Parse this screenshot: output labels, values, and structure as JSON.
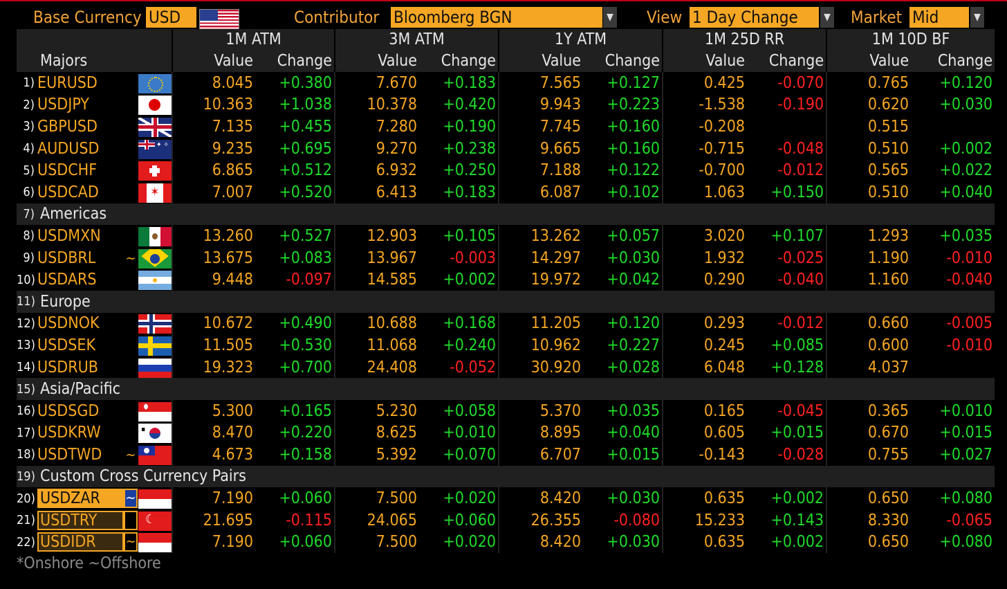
{
  "toolbar": {
    "base_currency_label": "Base Currency",
    "base_currency_value": "USD",
    "contributor_label": "Contributor",
    "contributor_value": "Bloomberg BGN",
    "view_label": "View",
    "view_value": "1 Day Change",
    "market_label": "Market",
    "market_value": "Mid"
  },
  "headers": {
    "majors": "Majors",
    "groups": [
      "1M ATM",
      "3M ATM",
      "1Y ATM",
      "1M 25D RR",
      "1M 10D BF"
    ],
    "value": "Value",
    "change": "Change"
  },
  "rows": [
    {
      "type": "pair",
      "num": "1)",
      "name": "EURUSD",
      "tilde": "",
      "flag": "eur",
      "cells": [
        "8.045",
        "+0.380",
        "7.670",
        "+0.183",
        "7.565",
        "+0.127",
        "0.425",
        "-0.070",
        "0.765",
        "+0.120"
      ]
    },
    {
      "type": "pair",
      "num": "2)",
      "name": "USDJPY",
      "tilde": "",
      "flag": "jpy",
      "cells": [
        "10.363",
        "+1.038",
        "10.378",
        "+0.420",
        "9.943",
        "+0.223",
        "-1.538",
        "-0.190",
        "0.620",
        "+0.030"
      ]
    },
    {
      "type": "pair",
      "num": "3)",
      "name": "GBPUSD",
      "tilde": "",
      "flag": "gbp",
      "cells": [
        "7.135",
        "+0.455",
        "7.280",
        "+0.190",
        "7.745",
        "+0.160",
        "-0.208",
        "",
        "0.515",
        ""
      ]
    },
    {
      "type": "pair",
      "num": "4)",
      "name": "AUDUSD",
      "tilde": "",
      "flag": "aud",
      "cells": [
        "9.235",
        "+0.695",
        "9.270",
        "+0.238",
        "9.665",
        "+0.160",
        "-0.715",
        "-0.048",
        "0.510",
        "+0.002"
      ]
    },
    {
      "type": "pair",
      "num": "5)",
      "name": "USDCHF",
      "tilde": "",
      "flag": "chf",
      "cells": [
        "6.865",
        "+0.512",
        "6.932",
        "+0.250",
        "7.188",
        "+0.122",
        "-0.700",
        "-0.012",
        "0.565",
        "+0.022"
      ]
    },
    {
      "type": "pair",
      "num": "6)",
      "name": "USDCAD",
      "tilde": "",
      "flag": "cad",
      "cells": [
        "7.007",
        "+0.520",
        "6.413",
        "+0.183",
        "6.087",
        "+0.102",
        "1.063",
        "+0.150",
        "0.510",
        "+0.040"
      ]
    },
    {
      "type": "section",
      "num": "7)",
      "name": "Americas"
    },
    {
      "type": "pair",
      "num": "8)",
      "name": "USDMXN",
      "tilde": "",
      "flag": "mxn",
      "cells": [
        "13.260",
        "+0.527",
        "12.903",
        "+0.105",
        "13.262",
        "+0.057",
        "3.020",
        "+0.107",
        "1.293",
        "+0.035"
      ]
    },
    {
      "type": "pair",
      "num": "9)",
      "name": "USDBRL",
      "tilde": "~",
      "flag": "brl",
      "cells": [
        "13.675",
        "+0.083",
        "13.967",
        "-0.003",
        "14.297",
        "+0.030",
        "1.932",
        "-0.025",
        "1.190",
        "-0.010"
      ]
    },
    {
      "type": "pair",
      "num": "10)",
      "name": "USDARS",
      "tilde": "",
      "flag": "ars",
      "cells": [
        "9.448",
        "-0.097",
        "14.585",
        "+0.002",
        "19.972",
        "+0.042",
        "0.290",
        "-0.040",
        "1.160",
        "-0.040"
      ]
    },
    {
      "type": "section",
      "num": "11)",
      "name": "Europe"
    },
    {
      "type": "pair",
      "num": "12)",
      "name": "USDNOK",
      "tilde": "",
      "flag": "nok",
      "cells": [
        "10.672",
        "+0.490",
        "10.688",
        "+0.168",
        "11.205",
        "+0.120",
        "0.293",
        "-0.012",
        "0.660",
        "-0.005"
      ]
    },
    {
      "type": "pair",
      "num": "13)",
      "name": "USDSEK",
      "tilde": "",
      "flag": "sek",
      "cells": [
        "11.505",
        "+0.530",
        "11.068",
        "+0.240",
        "10.962",
        "+0.227",
        "0.245",
        "+0.085",
        "0.600",
        "-0.010"
      ]
    },
    {
      "type": "pair",
      "num": "14)",
      "name": "USDRUB",
      "tilde": "",
      "flag": "rub",
      "cells": [
        "19.323",
        "+0.700",
        "24.408",
        "-0.052",
        "30.920",
        "+0.028",
        "6.048",
        "+0.128",
        "4.037",
        ""
      ]
    },
    {
      "type": "section",
      "num": "15)",
      "name": "Asia/Pacific"
    },
    {
      "type": "pair",
      "num": "16)",
      "name": "USDSGD",
      "tilde": "",
      "flag": "sgd",
      "cells": [
        "5.300",
        "+0.165",
        "5.230",
        "+0.058",
        "5.370",
        "+0.035",
        "0.165",
        "-0.045",
        "0.365",
        "+0.010"
      ]
    },
    {
      "type": "pair",
      "num": "17)",
      "name": "USDKRW",
      "tilde": "",
      "flag": "krw",
      "cells": [
        "8.470",
        "+0.220",
        "8.625",
        "+0.010",
        "8.895",
        "+0.040",
        "0.605",
        "+0.015",
        "0.670",
        "+0.015"
      ]
    },
    {
      "type": "pair",
      "num": "18)",
      "name": "USDTWD",
      "tilde": "~",
      "flag": "twd",
      "cells": [
        "4.673",
        "+0.158",
        "5.392",
        "+0.070",
        "6.707",
        "+0.015",
        "-0.143",
        "-0.028",
        "0.755",
        "+0.027"
      ]
    },
    {
      "type": "section",
      "num": "19)",
      "name": "Custom Cross Currency Pairs"
    },
    {
      "type": "custom",
      "num": "20)",
      "name": "USDZAR",
      "tilde": "~",
      "tilde_selected": true,
      "flag": "zar",
      "cells": [
        "7.190",
        "+0.060",
        "7.500",
        "+0.020",
        "8.420",
        "+0.030",
        "0.635",
        "+0.002",
        "0.650",
        "+0.080"
      ]
    },
    {
      "type": "custom",
      "num": "21)",
      "name": "USDTRY",
      "tilde": "",
      "tilde_selected": false,
      "flag": "try",
      "cells": [
        "21.695",
        "-0.115",
        "24.065",
        "+0.060",
        "26.355",
        "-0.080",
        "15.233",
        "+0.143",
        "8.330",
        "-0.065"
      ]
    },
    {
      "type": "custom",
      "num": "22)",
      "name": "USDIDR",
      "tilde": "~",
      "tilde_selected": false,
      "flag": "idr",
      "cells": [
        "7.190",
        "+0.060",
        "7.500",
        "+0.020",
        "8.420",
        "+0.030",
        "0.635",
        "+0.002",
        "0.650",
        "+0.080"
      ]
    }
  ],
  "footer": "*Onshore ~Offshore",
  "colors": {
    "accent": "#f5a623",
    "positive": "#1fdc2a",
    "negative": "#ff2020",
    "header_bg": "#202020"
  }
}
